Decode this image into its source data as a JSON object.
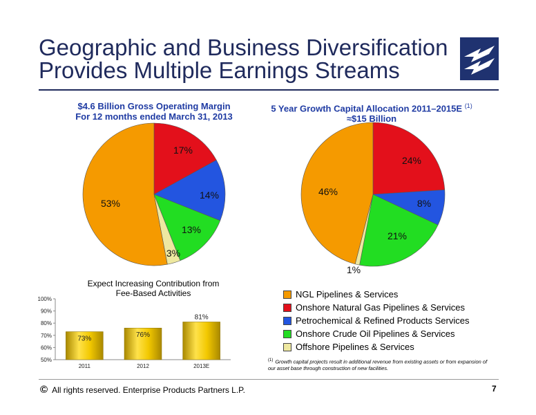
{
  "slide": {
    "title_line1": "Geographic and Business Diversification",
    "title_line2": "Provides Multiple Earnings Streams",
    "copyright_symbol": "©",
    "copyright": "All rights reserved. Enterprise Products Partners L.P.",
    "page_number": "7",
    "footnote_mark": "(1)",
    "footnote": "Growth capital projects result in additional revenue from existing assets or from expansion of our asset base through construction of new facilities.",
    "colors": {
      "title": "#1f2a5c",
      "subtitle": "#1f3ba3",
      "logo_bg": "#1f3270"
    }
  },
  "legend": [
    {
      "label": "NGL Pipelines & Services",
      "color": "#f59a00"
    },
    {
      "label": "Onshore Natural Gas Pipelines & Services",
      "color": "#e3101b"
    },
    {
      "label": "Petrochemical & Refined Products Services",
      "color": "#2355e0"
    },
    {
      "label": "Onshore Crude Oil Pipelines & Services",
      "color": "#22dd22"
    },
    {
      "label": "Offshore Pipelines & Services",
      "color": "#eee8a0"
    }
  ],
  "chart_data": [
    {
      "type": "pie",
      "title_line1": "$4.6 Billion Gross Operating Margin",
      "title_line2": "For 12 months ended March 31, 2013",
      "categories": [
        "Onshore Natural Gas Pipelines & Services",
        "Petrochemical & Refined Products Services",
        "Onshore Crude Oil Pipelines & Services",
        "Offshore Pipelines & Services",
        "NGL Pipelines & Services"
      ],
      "values": [
        17,
        14,
        13,
        3,
        53
      ],
      "labels": [
        "17%",
        "14%",
        "13%",
        "3%",
        "53%"
      ],
      "colors": [
        "#e3101b",
        "#2355e0",
        "#22dd22",
        "#eee8a0",
        "#f59a00"
      ]
    },
    {
      "type": "pie",
      "title_line1": "5 Year Growth Capital Allocation 2011–2015E",
      "title_sup": "(1)",
      "title_line2": "≈$15 Billion",
      "categories": [
        "Onshore Natural Gas Pipelines & Services",
        "Petrochemical & Refined Products Services",
        "Onshore Crude Oil Pipelines & Services",
        "Offshore Pipelines & Services",
        "NGL Pipelines & Services"
      ],
      "values": [
        24,
        8,
        21,
        1,
        46
      ],
      "labels": [
        "24%",
        "8%",
        "21%",
        "1%",
        "46%"
      ],
      "colors": [
        "#e3101b",
        "#2355e0",
        "#22dd22",
        "#eee8a0",
        "#f59a00"
      ]
    },
    {
      "type": "bar",
      "title_line1": "Expect Increasing Contribution from",
      "title_line2": "Fee-Based Activities",
      "categories": [
        "2011",
        "2012",
        "2013E"
      ],
      "values": [
        73,
        76,
        81
      ],
      "labels": [
        "73%",
        "76%",
        "81%"
      ],
      "ylim": [
        50,
        100
      ],
      "yticks": [
        "50%",
        "60%",
        "70%",
        "80%",
        "90%",
        "100%"
      ],
      "bar_color": "#e6c000"
    }
  ]
}
